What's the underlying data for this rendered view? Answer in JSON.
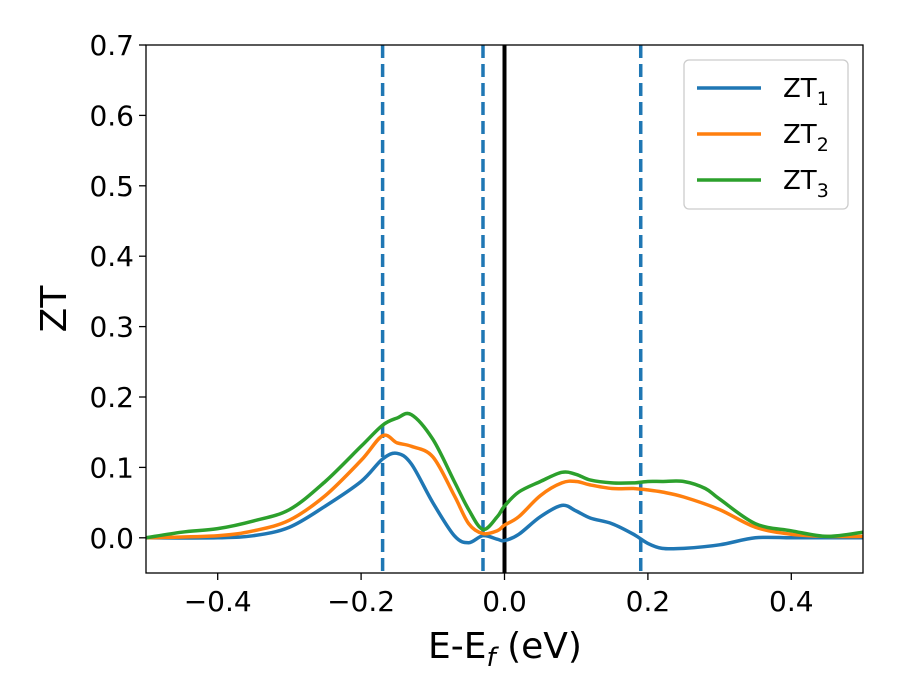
{
  "chart_data": {
    "type": "line",
    "xlabel": "E-E",
    "xlabel_sub": "f",
    "xlabel_unit": " (eV)",
    "ylabel": "ZT",
    "xlim": [
      -0.5,
      0.5
    ],
    "ylim": [
      -0.05,
      0.7
    ],
    "xticks": [
      -0.4,
      -0.2,
      0.0,
      0.2,
      0.4
    ],
    "xtick_labels": [
      "−0.4",
      "−0.2",
      "0.0",
      "0.2",
      "0.4"
    ],
    "yticks": [
      0.0,
      0.1,
      0.2,
      0.3,
      0.4,
      0.5,
      0.6,
      0.7
    ],
    "ytick_labels": [
      "0.0",
      "0.1",
      "0.2",
      "0.3",
      "0.4",
      "0.5",
      "0.6",
      "0.7"
    ],
    "legend_position": "top-right",
    "vertical_lines": [
      {
        "x": -0.17,
        "style": "dashed",
        "color": "#1f77b4"
      },
      {
        "x": -0.03,
        "style": "dashed",
        "color": "#1f77b4"
      },
      {
        "x": 0.0,
        "style": "solid",
        "color": "#000000"
      },
      {
        "x": 0.19,
        "style": "dashed",
        "color": "#1f77b4"
      }
    ],
    "series": [
      {
        "name": "ZT",
        "sub": "1",
        "color": "#1f77b4",
        "x": [
          -0.5,
          -0.4,
          -0.35,
          -0.3,
          -0.25,
          -0.2,
          -0.17,
          -0.15,
          -0.13,
          -0.1,
          -0.07,
          -0.05,
          -0.03,
          -0.01,
          0.0,
          0.02,
          0.05,
          0.08,
          0.1,
          0.12,
          0.15,
          0.18,
          0.2,
          0.22,
          0.25,
          0.3,
          0.35,
          0.4,
          0.45,
          0.5
        ],
        "y": [
          0.0,
          0.0,
          0.003,
          0.015,
          0.045,
          0.08,
          0.112,
          0.12,
          0.105,
          0.05,
          0.003,
          -0.007,
          0.003,
          -0.002,
          -0.004,
          0.005,
          0.03,
          0.046,
          0.038,
          0.028,
          0.02,
          0.005,
          -0.008,
          -0.015,
          -0.015,
          -0.01,
          0.0,
          0.0,
          0.0,
          0.0
        ]
      },
      {
        "name": "ZT",
        "sub": "2",
        "color": "#ff7f0e",
        "x": [
          -0.5,
          -0.4,
          -0.35,
          -0.3,
          -0.25,
          -0.2,
          -0.17,
          -0.15,
          -0.13,
          -0.1,
          -0.07,
          -0.05,
          -0.03,
          -0.01,
          0.0,
          0.02,
          0.05,
          0.08,
          0.1,
          0.12,
          0.15,
          0.18,
          0.2,
          0.22,
          0.25,
          0.3,
          0.35,
          0.4,
          0.45,
          0.5
        ],
        "y": [
          0.0,
          0.003,
          0.01,
          0.025,
          0.06,
          0.11,
          0.145,
          0.135,
          0.13,
          0.115,
          0.06,
          0.02,
          0.006,
          0.01,
          0.018,
          0.03,
          0.06,
          0.078,
          0.08,
          0.075,
          0.07,
          0.07,
          0.068,
          0.065,
          0.058,
          0.04,
          0.015,
          0.005,
          0.002,
          0.002
        ]
      },
      {
        "name": "ZT",
        "sub": "3",
        "color": "#2ca02c",
        "x": [
          -0.5,
          -0.45,
          -0.4,
          -0.35,
          -0.3,
          -0.25,
          -0.2,
          -0.17,
          -0.15,
          -0.13,
          -0.1,
          -0.07,
          -0.05,
          -0.03,
          -0.01,
          0.0,
          0.02,
          0.05,
          0.08,
          0.1,
          0.12,
          0.15,
          0.18,
          0.2,
          0.22,
          0.25,
          0.28,
          0.3,
          0.35,
          0.4,
          0.45,
          0.5
        ],
        "y": [
          0.0,
          0.008,
          0.013,
          0.024,
          0.04,
          0.08,
          0.13,
          0.16,
          0.17,
          0.175,
          0.14,
          0.08,
          0.04,
          0.012,
          0.03,
          0.045,
          0.065,
          0.08,
          0.093,
          0.09,
          0.082,
          0.078,
          0.078,
          0.08,
          0.08,
          0.08,
          0.07,
          0.055,
          0.02,
          0.01,
          0.002,
          0.008
        ]
      }
    ]
  }
}
